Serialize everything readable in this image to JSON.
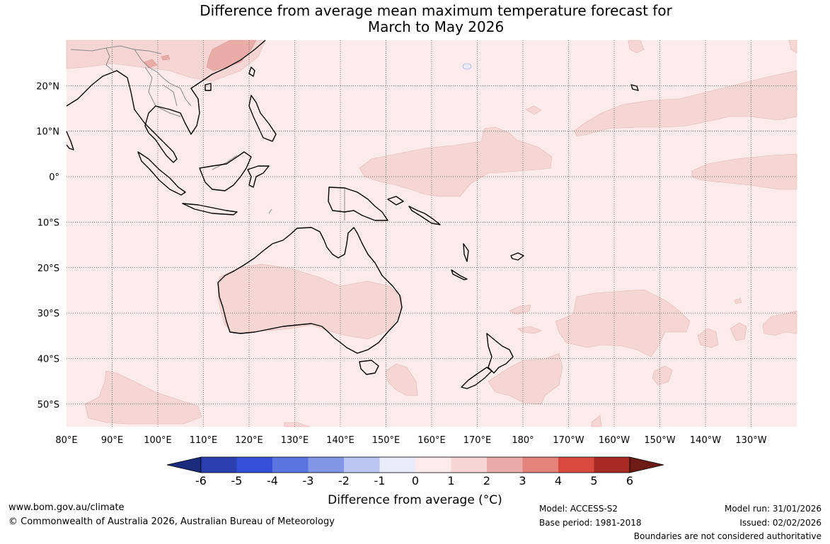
{
  "title": {
    "line1": "Difference from average mean maximum temperature forecast for",
    "line2": "March to May 2026"
  },
  "map": {
    "lon_labels": [
      "80°E",
      "90°E",
      "100°E",
      "110°E",
      "120°E",
      "130°E",
      "140°E",
      "150°E",
      "160°E",
      "170°E",
      "180°",
      "170°W",
      "160°W",
      "150°W",
      "140°W",
      "130°W"
    ],
    "lon_values": [
      80,
      90,
      100,
      110,
      120,
      130,
      140,
      150,
      160,
      170,
      180,
      190,
      200,
      210,
      220,
      230
    ],
    "lat_labels": [
      "20°N",
      "10°N",
      "0°",
      "10°S",
      "20°S",
      "30°S",
      "40°S",
      "50°S"
    ],
    "lat_values": [
      20,
      10,
      0,
      -10,
      -20,
      -30,
      -40,
      -50
    ],
    "lon_range": [
      80,
      240
    ],
    "lat_range": [
      -55,
      30
    ],
    "background_color": "#fcebea",
    "anomaly_0_1_color": "#fcebea",
    "anomaly_1_2_color": "#f5d6d4",
    "anomaly_2_3_color": "#eaaca6",
    "coastline_color": "#000000",
    "border_color": "#888888"
  },
  "colorbar": {
    "ticks": [
      "-6",
      "-5",
      "-4",
      "-3",
      "-2",
      "-1",
      "0",
      "1",
      "2",
      "3",
      "4",
      "5",
      "6"
    ],
    "colors": [
      "#1a2a7c",
      "#2b3fb0",
      "#3550d8",
      "#5a74e0",
      "#8296e6",
      "#bcc6f2",
      "#e8ebfa",
      "#fcebea",
      "#f5d6d4",
      "#eaaca6",
      "#e4837b",
      "#d84a3e",
      "#a62a24",
      "#6e1a16"
    ],
    "label": "Difference from average (°C)"
  },
  "footer": {
    "website": "www.bom.gov.au/climate",
    "copyright": "© Commonwealth of Australia 2026, Australian Bureau of Meteorology",
    "model": "Model: ACCESS-S2",
    "base_period": "Base period: 1981-2018",
    "model_run": "Model run: 31/01/2026",
    "issued": "Issued: 02/02/2026",
    "disclaimer": "Boundaries are not considered authoritative"
  }
}
